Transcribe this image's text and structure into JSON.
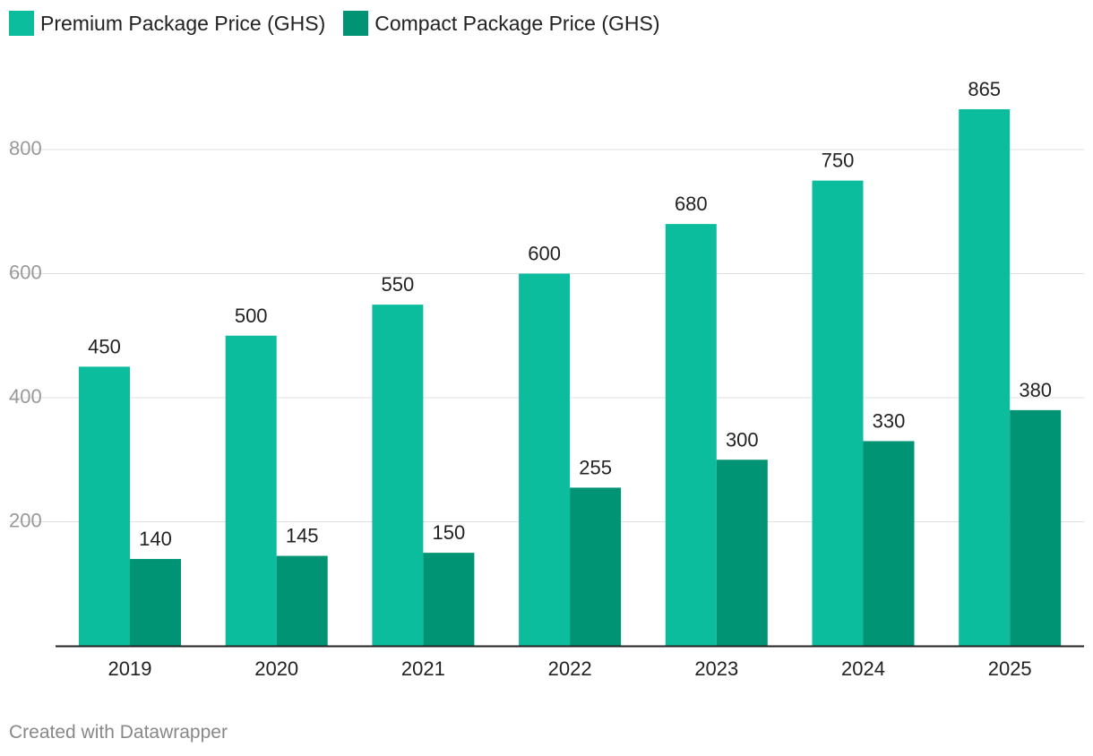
{
  "colors": {
    "premium": "#0bbc9d",
    "compact": "#009475",
    "grid": "#e1e1e1",
    "axis": "#222222"
  },
  "footer": "Created with Datawrapper",
  "chart_data": {
    "type": "bar",
    "title": "",
    "xlabel": "",
    "ylabel": "",
    "categories": [
      "2019",
      "2020",
      "2021",
      "2022",
      "2023",
      "2024",
      "2025"
    ],
    "series": [
      {
        "name": "Premium Package Price (GHS)",
        "color_key": "premium",
        "values": [
          450,
          500,
          550,
          600,
          680,
          750,
          865
        ]
      },
      {
        "name": "Compact Package Price (GHS)",
        "color_key": "compact",
        "values": [
          140,
          145,
          150,
          255,
          300,
          330,
          380
        ]
      }
    ],
    "yticks": [
      200,
      400,
      600,
      800
    ],
    "ylim": [
      0,
      900
    ],
    "grid": true,
    "legend": "top-left",
    "data_labels": true
  }
}
